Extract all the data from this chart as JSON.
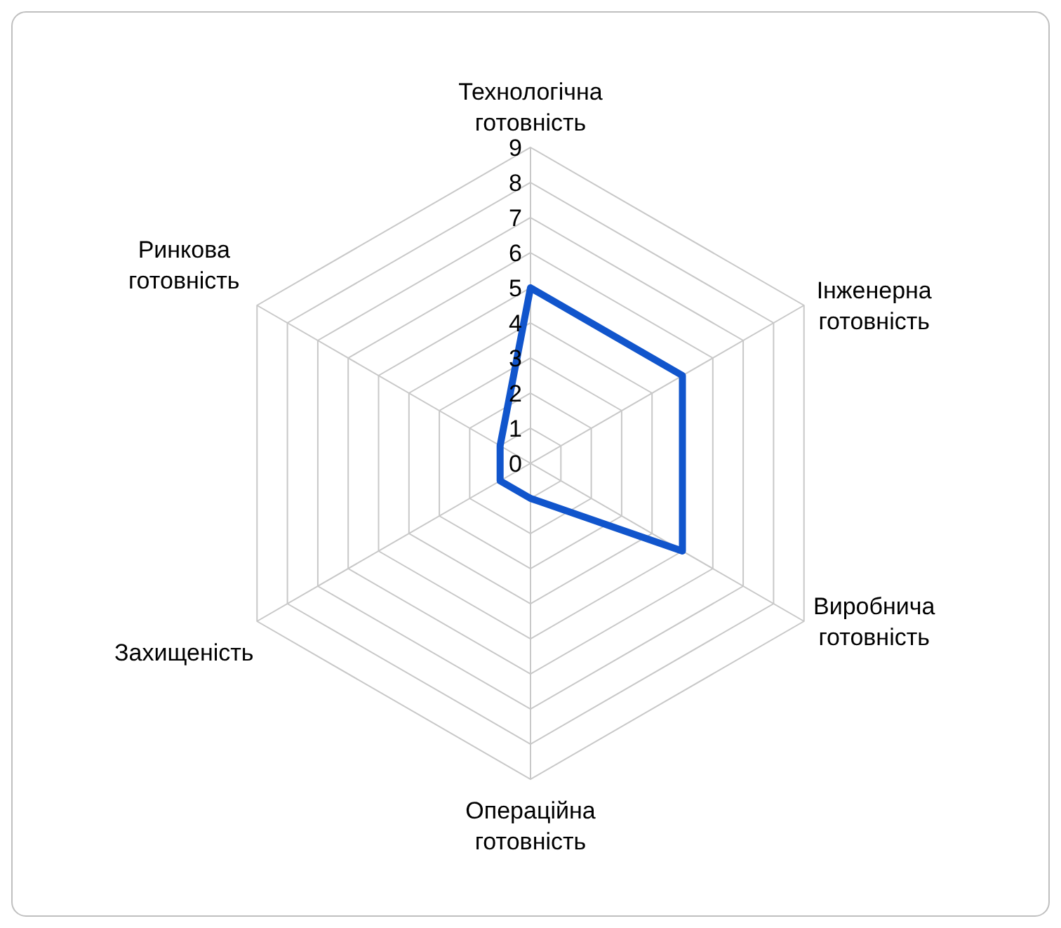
{
  "chart_data": {
    "type": "radar",
    "categories": [
      "Технологічна готовність",
      "Інженерна готовність",
      "Виробнича готовність",
      "Операційна готовність",
      "Захищеність",
      "Ринкова готовність"
    ],
    "series": [
      {
        "color": "#1155cc",
        "values": [
          5,
          5,
          5,
          1,
          1,
          1
        ]
      }
    ],
    "ylim": [
      0,
      9
    ],
    "yticks": [
      0,
      1,
      2,
      3,
      4,
      5,
      6,
      7,
      8,
      9
    ]
  }
}
